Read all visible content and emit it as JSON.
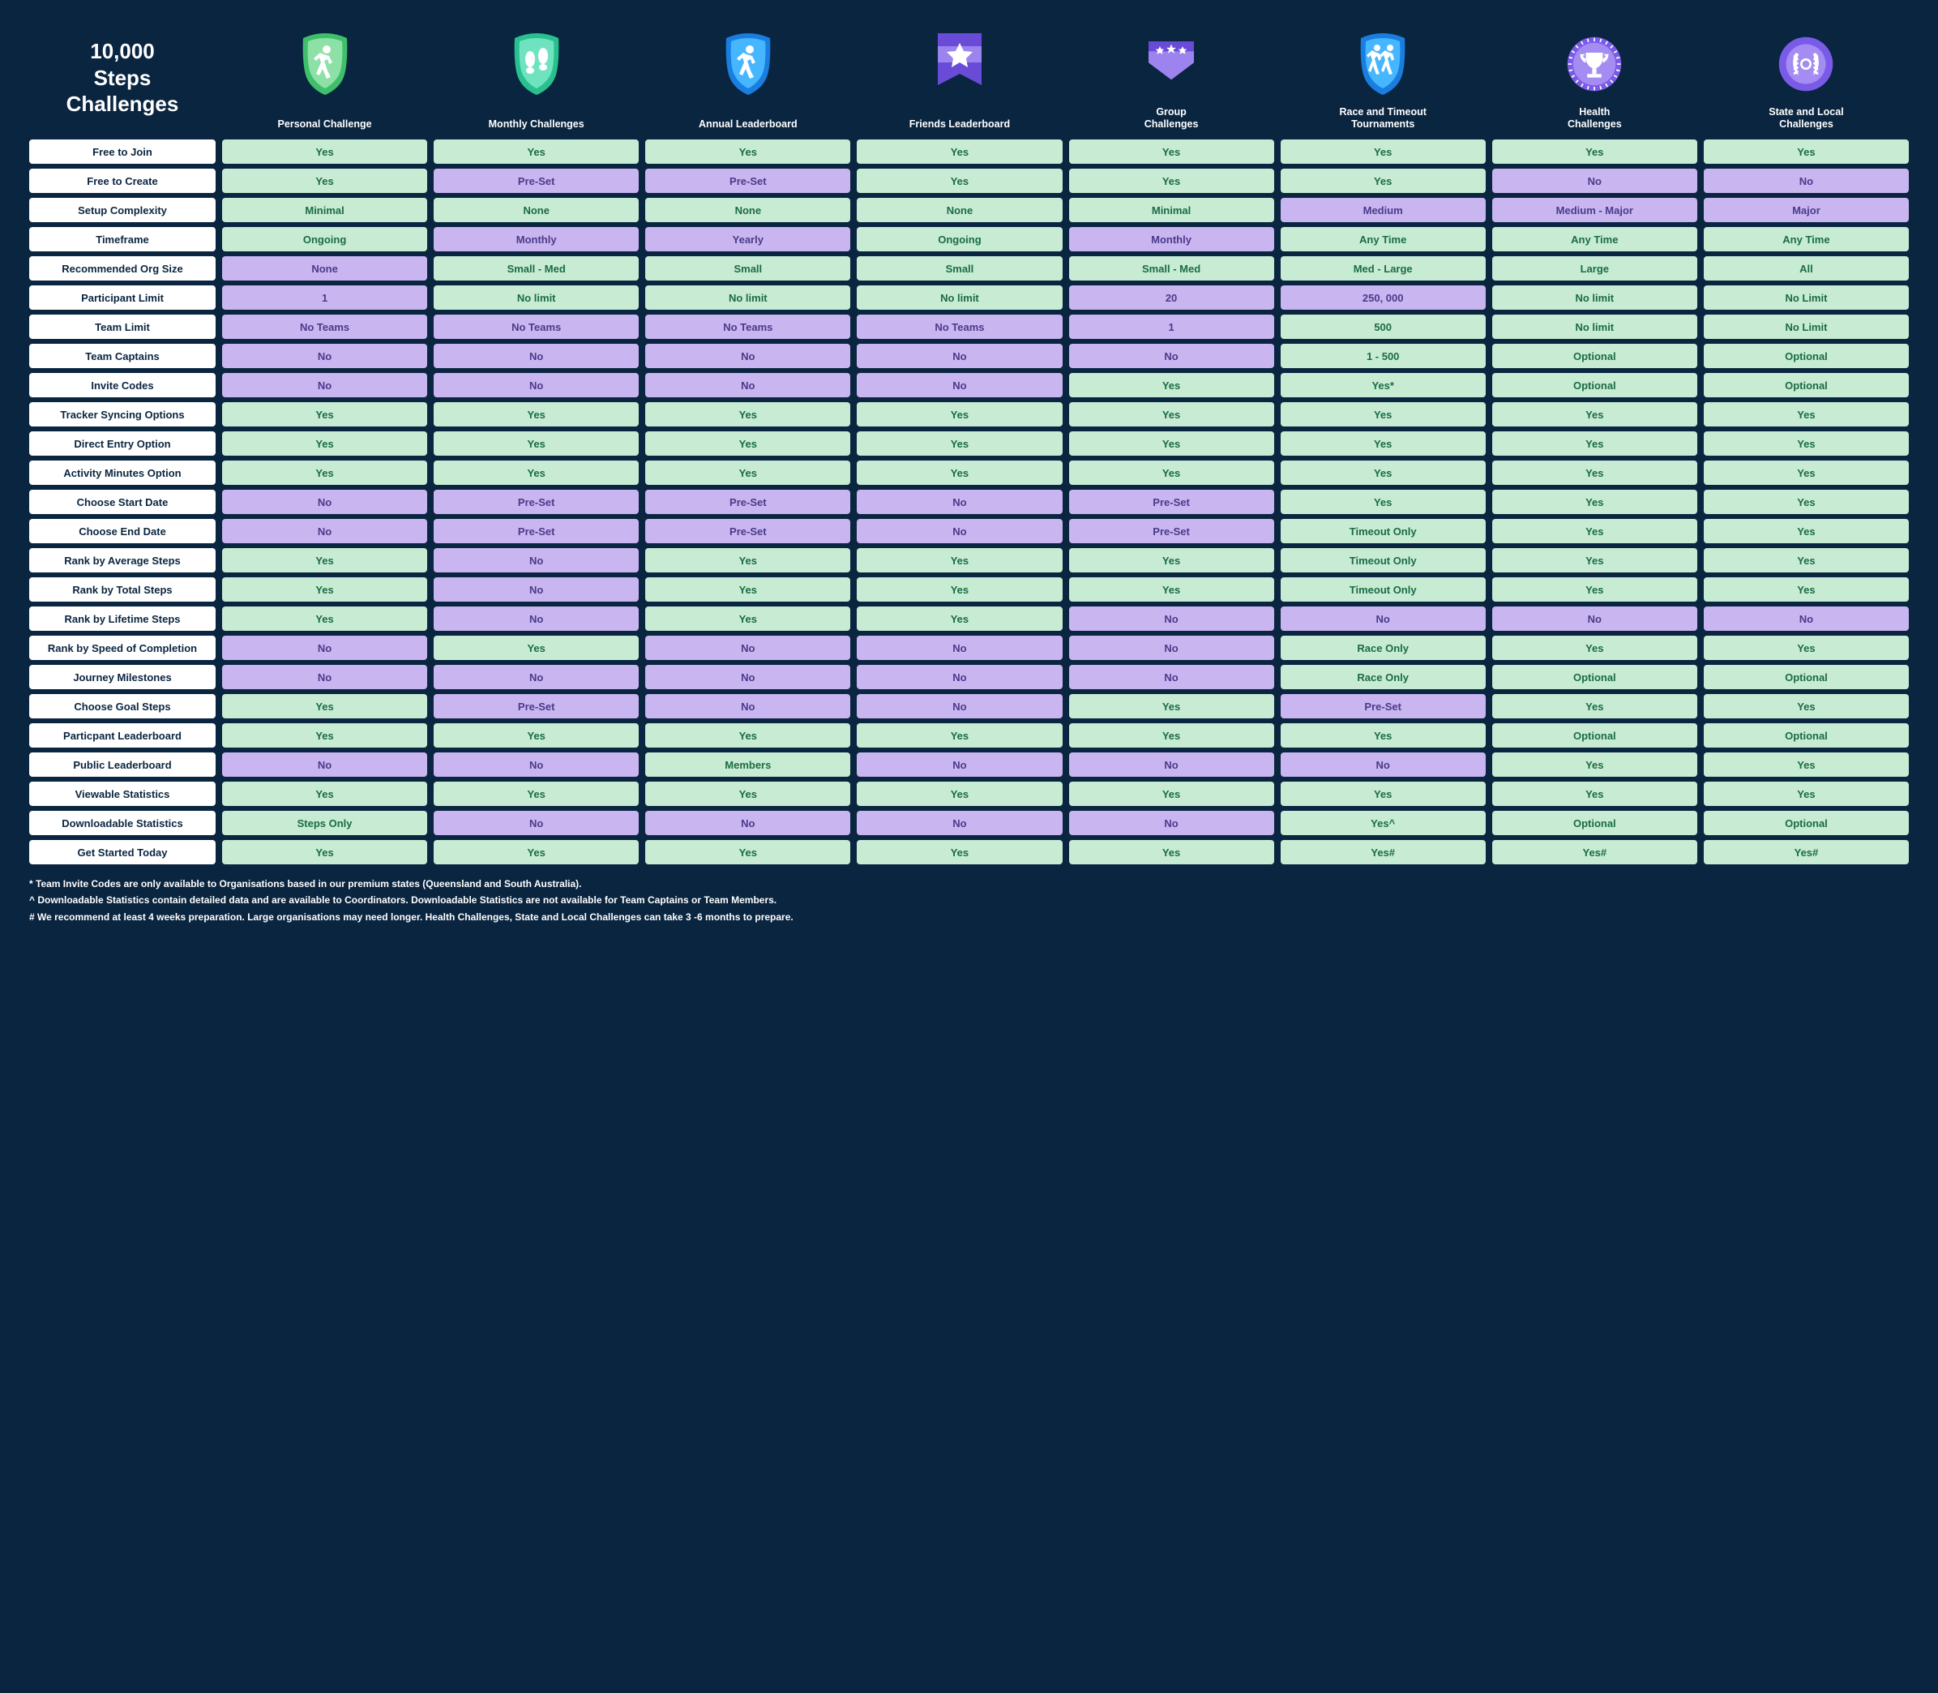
{
  "title": "10,000\nSteps\nChallenges",
  "columns": [
    {
      "label": "Personal Challenge",
      "icon": "walker-shield-green",
      "colors": {
        "outer": "#3fbf6a",
        "inner": "#8de1a7"
      }
    },
    {
      "label": "Monthly Challenges",
      "icon": "footprints-shield-teal",
      "colors": {
        "outer": "#29c08f",
        "inner": "#6fe3bf"
      }
    },
    {
      "label": "Annual Leaderboard",
      "icon": "walker-shield-blue",
      "colors": {
        "outer": "#1a7de0",
        "inner": "#46b6ff"
      }
    },
    {
      "label": "Friends Leaderboard",
      "icon": "star-banner-purple",
      "colors": {
        "outer": "#6a4bd8",
        "inner": "#9d83ee"
      }
    },
    {
      "label": "Group\nChallenges",
      "icon": "stars-chevron-purple",
      "colors": {
        "outer": "#6a4bd8",
        "inner": "#9d83ee"
      }
    },
    {
      "label": "Race and Timeout\nTournaments",
      "icon": "runners-shield-blue",
      "colors": {
        "outer": "#1a7de0",
        "inner": "#46b6ff"
      }
    },
    {
      "label": "Health\nChallenges",
      "icon": "trophy-circle-purple",
      "colors": {
        "outer": "#7a5be8",
        "inner": "#a48cf2"
      }
    },
    {
      "label": "State and Local\nChallenges",
      "icon": "laurel-circle-purple",
      "colors": {
        "outer": "#7a5be8",
        "inner": "#a48cf2"
      }
    }
  ],
  "rows": [
    {
      "label": "Free to Join",
      "cells": [
        {
          "v": "Yes",
          "c": "green"
        },
        {
          "v": "Yes",
          "c": "green"
        },
        {
          "v": "Yes",
          "c": "green"
        },
        {
          "v": "Yes",
          "c": "green"
        },
        {
          "v": "Yes",
          "c": "green"
        },
        {
          "v": "Yes",
          "c": "green"
        },
        {
          "v": "Yes",
          "c": "green"
        },
        {
          "v": "Yes",
          "c": "green"
        }
      ]
    },
    {
      "label": "Free to Create",
      "cells": [
        {
          "v": "Yes",
          "c": "green"
        },
        {
          "v": "Pre-Set",
          "c": "purple"
        },
        {
          "v": "Pre-Set",
          "c": "purple"
        },
        {
          "v": "Yes",
          "c": "green"
        },
        {
          "v": "Yes",
          "c": "green"
        },
        {
          "v": "Yes",
          "c": "green"
        },
        {
          "v": "No",
          "c": "purple"
        },
        {
          "v": "No",
          "c": "purple"
        }
      ]
    },
    {
      "label": "Setup Complexity",
      "cells": [
        {
          "v": "Minimal",
          "c": "green"
        },
        {
          "v": "None",
          "c": "green"
        },
        {
          "v": "None",
          "c": "green"
        },
        {
          "v": "None",
          "c": "green"
        },
        {
          "v": "Minimal",
          "c": "green"
        },
        {
          "v": "Medium",
          "c": "purple"
        },
        {
          "v": "Medium - Major",
          "c": "purple"
        },
        {
          "v": "Major",
          "c": "purple"
        }
      ]
    },
    {
      "label": "Timeframe",
      "cells": [
        {
          "v": "Ongoing",
          "c": "green"
        },
        {
          "v": "Monthly",
          "c": "purple"
        },
        {
          "v": "Yearly",
          "c": "purple"
        },
        {
          "v": "Ongoing",
          "c": "green"
        },
        {
          "v": "Monthly",
          "c": "purple"
        },
        {
          "v": "Any Time",
          "c": "green"
        },
        {
          "v": "Any Time",
          "c": "green"
        },
        {
          "v": "Any Time",
          "c": "green"
        }
      ]
    },
    {
      "label": "Recommended Org Size",
      "cells": [
        {
          "v": "None",
          "c": "purple"
        },
        {
          "v": "Small - Med",
          "c": "green"
        },
        {
          "v": "Small",
          "c": "green"
        },
        {
          "v": "Small",
          "c": "green"
        },
        {
          "v": "Small - Med",
          "c": "green"
        },
        {
          "v": "Med - Large",
          "c": "green"
        },
        {
          "v": "Large",
          "c": "green"
        },
        {
          "v": "All",
          "c": "green"
        }
      ]
    },
    {
      "label": "Participant Limit",
      "cells": [
        {
          "v": "1",
          "c": "purple"
        },
        {
          "v": "No limit",
          "c": "green"
        },
        {
          "v": "No limit",
          "c": "green"
        },
        {
          "v": "No limit",
          "c": "green"
        },
        {
          "v": "20",
          "c": "purple"
        },
        {
          "v": "250, 000",
          "c": "purple"
        },
        {
          "v": "No limit",
          "c": "green"
        },
        {
          "v": "No Limit",
          "c": "green"
        }
      ]
    },
    {
      "label": "Team Limit",
      "cells": [
        {
          "v": "No Teams",
          "c": "purple"
        },
        {
          "v": "No Teams",
          "c": "purple"
        },
        {
          "v": "No Teams",
          "c": "purple"
        },
        {
          "v": "No Teams",
          "c": "purple"
        },
        {
          "v": "1",
          "c": "purple"
        },
        {
          "v": "500",
          "c": "green"
        },
        {
          "v": "No limit",
          "c": "green"
        },
        {
          "v": "No Limit",
          "c": "green"
        }
      ]
    },
    {
      "label": "Team Captains",
      "cells": [
        {
          "v": "No",
          "c": "purple"
        },
        {
          "v": "No",
          "c": "purple"
        },
        {
          "v": "No",
          "c": "purple"
        },
        {
          "v": "No",
          "c": "purple"
        },
        {
          "v": "No",
          "c": "purple"
        },
        {
          "v": "1 - 500",
          "c": "green"
        },
        {
          "v": "Optional",
          "c": "green"
        },
        {
          "v": "Optional",
          "c": "green"
        }
      ]
    },
    {
      "label": "Invite Codes",
      "cells": [
        {
          "v": "No",
          "c": "purple"
        },
        {
          "v": "No",
          "c": "purple"
        },
        {
          "v": "No",
          "c": "purple"
        },
        {
          "v": "No",
          "c": "purple"
        },
        {
          "v": "Yes",
          "c": "green"
        },
        {
          "v": "Yes*",
          "c": "green"
        },
        {
          "v": "Optional",
          "c": "green"
        },
        {
          "v": "Optional",
          "c": "green"
        }
      ]
    },
    {
      "label": "Tracker Syncing Options",
      "cells": [
        {
          "v": "Yes",
          "c": "green"
        },
        {
          "v": "Yes",
          "c": "green"
        },
        {
          "v": "Yes",
          "c": "green"
        },
        {
          "v": "Yes",
          "c": "green"
        },
        {
          "v": "Yes",
          "c": "green"
        },
        {
          "v": "Yes",
          "c": "green"
        },
        {
          "v": "Yes",
          "c": "green"
        },
        {
          "v": "Yes",
          "c": "green"
        }
      ]
    },
    {
      "label": "Direct Entry Option",
      "cells": [
        {
          "v": "Yes",
          "c": "green"
        },
        {
          "v": "Yes",
          "c": "green"
        },
        {
          "v": "Yes",
          "c": "green"
        },
        {
          "v": "Yes",
          "c": "green"
        },
        {
          "v": "Yes",
          "c": "green"
        },
        {
          "v": "Yes",
          "c": "green"
        },
        {
          "v": "Yes",
          "c": "green"
        },
        {
          "v": "Yes",
          "c": "green"
        }
      ]
    },
    {
      "label": "Activity Minutes Option",
      "cells": [
        {
          "v": "Yes",
          "c": "green"
        },
        {
          "v": "Yes",
          "c": "green"
        },
        {
          "v": "Yes",
          "c": "green"
        },
        {
          "v": "Yes",
          "c": "green"
        },
        {
          "v": "Yes",
          "c": "green"
        },
        {
          "v": "Yes",
          "c": "green"
        },
        {
          "v": "Yes",
          "c": "green"
        },
        {
          "v": "Yes",
          "c": "green"
        }
      ]
    },
    {
      "label": "Choose Start Date",
      "cells": [
        {
          "v": "No",
          "c": "purple"
        },
        {
          "v": "Pre-Set",
          "c": "purple"
        },
        {
          "v": "Pre-Set",
          "c": "purple"
        },
        {
          "v": "No",
          "c": "purple"
        },
        {
          "v": "Pre-Set",
          "c": "purple"
        },
        {
          "v": "Yes",
          "c": "green"
        },
        {
          "v": "Yes",
          "c": "green"
        },
        {
          "v": "Yes",
          "c": "green"
        }
      ]
    },
    {
      "label": "Choose End Date",
      "cells": [
        {
          "v": "No",
          "c": "purple"
        },
        {
          "v": "Pre-Set",
          "c": "purple"
        },
        {
          "v": "Pre-Set",
          "c": "purple"
        },
        {
          "v": "No",
          "c": "purple"
        },
        {
          "v": "Pre-Set",
          "c": "purple"
        },
        {
          "v": "Timeout Only",
          "c": "green"
        },
        {
          "v": "Yes",
          "c": "green"
        },
        {
          "v": "Yes",
          "c": "green"
        }
      ]
    },
    {
      "label": "Rank by Average Steps",
      "cells": [
        {
          "v": "Yes",
          "c": "green"
        },
        {
          "v": "No",
          "c": "purple"
        },
        {
          "v": "Yes",
          "c": "green"
        },
        {
          "v": "Yes",
          "c": "green"
        },
        {
          "v": "Yes",
          "c": "green"
        },
        {
          "v": "Timeout Only",
          "c": "green"
        },
        {
          "v": "Yes",
          "c": "green"
        },
        {
          "v": "Yes",
          "c": "green"
        }
      ]
    },
    {
      "label": "Rank by Total Steps",
      "cells": [
        {
          "v": "Yes",
          "c": "green"
        },
        {
          "v": "No",
          "c": "purple"
        },
        {
          "v": "Yes",
          "c": "green"
        },
        {
          "v": "Yes",
          "c": "green"
        },
        {
          "v": "Yes",
          "c": "green"
        },
        {
          "v": "Timeout Only",
          "c": "green"
        },
        {
          "v": "Yes",
          "c": "green"
        },
        {
          "v": "Yes",
          "c": "green"
        }
      ]
    },
    {
      "label": "Rank by Lifetime Steps",
      "cells": [
        {
          "v": "Yes",
          "c": "green"
        },
        {
          "v": "No",
          "c": "purple"
        },
        {
          "v": "Yes",
          "c": "green"
        },
        {
          "v": "Yes",
          "c": "green"
        },
        {
          "v": "No",
          "c": "purple"
        },
        {
          "v": "No",
          "c": "purple"
        },
        {
          "v": "No",
          "c": "purple"
        },
        {
          "v": "No",
          "c": "purple"
        }
      ]
    },
    {
      "label": "Rank by Speed of Completion",
      "cells": [
        {
          "v": "No",
          "c": "purple"
        },
        {
          "v": "Yes",
          "c": "green"
        },
        {
          "v": "No",
          "c": "purple"
        },
        {
          "v": "No",
          "c": "purple"
        },
        {
          "v": "No",
          "c": "purple"
        },
        {
          "v": "Race Only",
          "c": "green"
        },
        {
          "v": "Yes",
          "c": "green"
        },
        {
          "v": "Yes",
          "c": "green"
        }
      ]
    },
    {
      "label": "Journey Milestones",
      "cells": [
        {
          "v": "No",
          "c": "purple"
        },
        {
          "v": "No",
          "c": "purple"
        },
        {
          "v": "No",
          "c": "purple"
        },
        {
          "v": "No",
          "c": "purple"
        },
        {
          "v": "No",
          "c": "purple"
        },
        {
          "v": "Race Only",
          "c": "green"
        },
        {
          "v": "Optional",
          "c": "green"
        },
        {
          "v": "Optional",
          "c": "green"
        }
      ]
    },
    {
      "label": "Choose Goal Steps",
      "cells": [
        {
          "v": "Yes",
          "c": "green"
        },
        {
          "v": "Pre-Set",
          "c": "purple"
        },
        {
          "v": "No",
          "c": "purple"
        },
        {
          "v": "No",
          "c": "purple"
        },
        {
          "v": "Yes",
          "c": "green"
        },
        {
          "v": "Pre-Set",
          "c": "purple"
        },
        {
          "v": "Yes",
          "c": "green"
        },
        {
          "v": "Yes",
          "c": "green"
        }
      ]
    },
    {
      "label": "Particpant Leaderboard",
      "cells": [
        {
          "v": "Yes",
          "c": "green"
        },
        {
          "v": "Yes",
          "c": "green"
        },
        {
          "v": "Yes",
          "c": "green"
        },
        {
          "v": "Yes",
          "c": "green"
        },
        {
          "v": "Yes",
          "c": "green"
        },
        {
          "v": "Yes",
          "c": "green"
        },
        {
          "v": "Optional",
          "c": "green"
        },
        {
          "v": "Optional",
          "c": "green"
        }
      ]
    },
    {
      "label": "Public Leaderboard",
      "cells": [
        {
          "v": "No",
          "c": "purple"
        },
        {
          "v": "No",
          "c": "purple"
        },
        {
          "v": "Members",
          "c": "green"
        },
        {
          "v": "No",
          "c": "purple"
        },
        {
          "v": "No",
          "c": "purple"
        },
        {
          "v": "No",
          "c": "purple"
        },
        {
          "v": "Yes",
          "c": "green"
        },
        {
          "v": "Yes",
          "c": "green"
        }
      ]
    },
    {
      "label": "Viewable Statistics",
      "cells": [
        {
          "v": "Yes",
          "c": "green"
        },
        {
          "v": "Yes",
          "c": "green"
        },
        {
          "v": "Yes",
          "c": "green"
        },
        {
          "v": "Yes",
          "c": "green"
        },
        {
          "v": "Yes",
          "c": "green"
        },
        {
          "v": "Yes",
          "c": "green"
        },
        {
          "v": "Yes",
          "c": "green"
        },
        {
          "v": "Yes",
          "c": "green"
        }
      ]
    },
    {
      "label": "Downloadable Statistics",
      "cells": [
        {
          "v": "Steps Only",
          "c": "green"
        },
        {
          "v": "No",
          "c": "purple"
        },
        {
          "v": "No",
          "c": "purple"
        },
        {
          "v": "No",
          "c": "purple"
        },
        {
          "v": "No",
          "c": "purple"
        },
        {
          "v": "Yes^",
          "c": "green"
        },
        {
          "v": "Optional",
          "c": "green"
        },
        {
          "v": "Optional",
          "c": "green"
        }
      ]
    },
    {
      "label": "Get Started Today",
      "cells": [
        {
          "v": "Yes",
          "c": "green"
        },
        {
          "v": "Yes",
          "c": "green"
        },
        {
          "v": "Yes",
          "c": "green"
        },
        {
          "v": "Yes",
          "c": "green"
        },
        {
          "v": "Yes",
          "c": "green"
        },
        {
          "v": "Yes#",
          "c": "green"
        },
        {
          "v": "Yes#",
          "c": "green"
        },
        {
          "v": "Yes#",
          "c": "green"
        }
      ]
    }
  ],
  "footnotes": [
    "* Team Invite Codes are only available to Organisations based in our premium states (Queensland and South Australia).",
    "^ Downloadable Statistics contain detailed data and are available to Coordinators. Downloadable Statistics are not available for Team Captains or Team Members.",
    "# We recommend at least 4 weeks preparation. Large organisations may need longer. Health Challenges, State and Local Challenges can take 3 -6 months to prepare."
  ],
  "palette": {
    "bg": "#0a2540",
    "green_bg": "#c7ecd3",
    "green_fg": "#1b6b46",
    "purple_bg": "#c9b5ef",
    "purple_fg": "#4a3a8a",
    "white": "#ffffff"
  }
}
